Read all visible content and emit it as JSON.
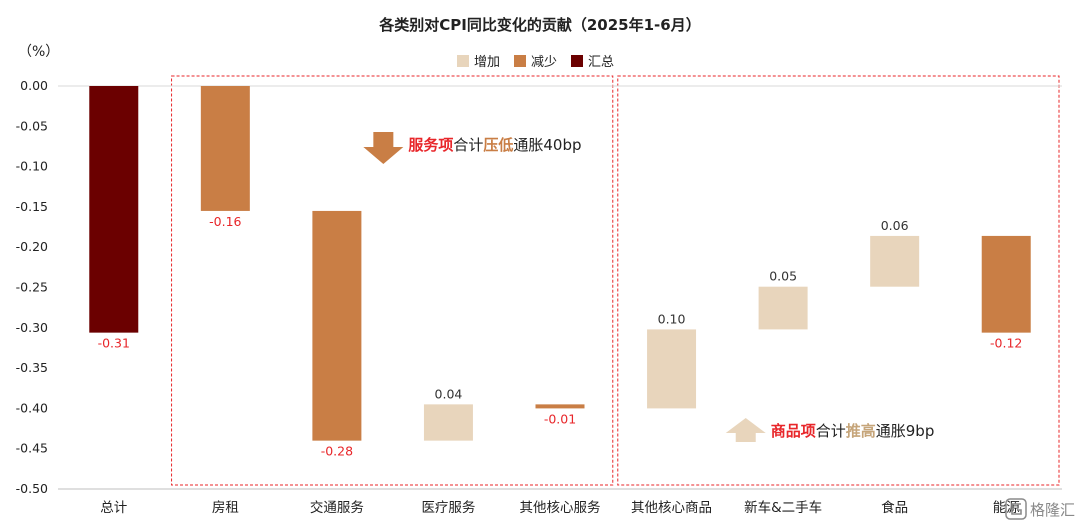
{
  "chart_data": {
    "type": "bar",
    "title": "各类别对CPI同比变化的贡献（2025年1-6月）",
    "unit_label": "（%）",
    "ylim": [
      -0.5,
      0.0
    ],
    "yticks": [
      0.0,
      -0.05,
      -0.1,
      -0.15,
      -0.2,
      -0.25,
      -0.3,
      -0.35,
      -0.4,
      -0.45,
      -0.5
    ],
    "ytick_labels": [
      "0.00",
      "-0.05",
      "-0.10",
      "-0.15",
      "-0.20",
      "-0.25",
      "-0.30",
      "-0.35",
      "-0.40",
      "-0.45",
      "-0.50"
    ],
    "grid": false,
    "legend_position": "top-center",
    "legend": [
      {
        "name": "增加",
        "color": "#E8D5BC"
      },
      {
        "name": "减少",
        "color": "#C97E45"
      },
      {
        "name": "汇总",
        "color": "#6B0000"
      }
    ],
    "categories": [
      "总计",
      "房租",
      "交通服务",
      "医疗服务",
      "其他核心服务",
      "其他核心商品",
      "新车&二手车",
      "食品",
      "能源"
    ],
    "bars": [
      {
        "category": "总计",
        "kind": "汇总",
        "start": 0.0,
        "end": -0.306,
        "label": "-0.31"
      },
      {
        "category": "房租",
        "kind": "减少",
        "start": 0.0,
        "end": -0.155,
        "label": "-0.16"
      },
      {
        "category": "交通服务",
        "kind": "减少",
        "start": -0.155,
        "end": -0.44,
        "label": "-0.28"
      },
      {
        "category": "医疗服务",
        "kind": "增加",
        "start": -0.44,
        "end": -0.395,
        "label": "0.04"
      },
      {
        "category": "其他核心服务",
        "kind": "减少",
        "start": -0.395,
        "end": -0.4,
        "label": "-0.01"
      },
      {
        "category": "其他核心商品",
        "kind": "增加",
        "start": -0.4,
        "end": -0.302,
        "label": "0.10"
      },
      {
        "category": "新车&二手车",
        "kind": "增加",
        "start": -0.302,
        "end": -0.249,
        "label": "0.05"
      },
      {
        "category": "食品",
        "kind": "增加",
        "start": -0.249,
        "end": -0.186,
        "label": "0.06"
      },
      {
        "category": "能源",
        "kind": "减少",
        "start": -0.186,
        "end": -0.306,
        "label": "-0.12"
      }
    ],
    "positive_label_color": "#333333",
    "negative_label_color": "#E8262A",
    "annotations": [
      {
        "id": "services",
        "group_first": "房租",
        "group_last": "其他核心服务",
        "arrow": "down",
        "arrow_color": "#C97E45",
        "parts": [
          {
            "text": "服务项",
            "color": "#E8262A"
          },
          {
            "text": "合计",
            "color": "#222222"
          },
          {
            "text": "压低",
            "color": "#C97E45"
          },
          {
            "text": "通胀40bp",
            "color": "#222222"
          }
        ]
      },
      {
        "id": "goods",
        "group_first": "其他核心商品",
        "group_last": "能源",
        "arrow": "up",
        "arrow_color": "#E8D5BC",
        "parts": [
          {
            "text": "商品项",
            "color": "#E8262A"
          },
          {
            "text": "合计",
            "color": "#222222"
          },
          {
            "text": "推高",
            "color": "#C6A57A"
          },
          {
            "text": "通胀9bp",
            "color": "#222222"
          }
        ]
      }
    ],
    "dashed_box_color": "#E8262A"
  },
  "watermark": "格隆汇"
}
